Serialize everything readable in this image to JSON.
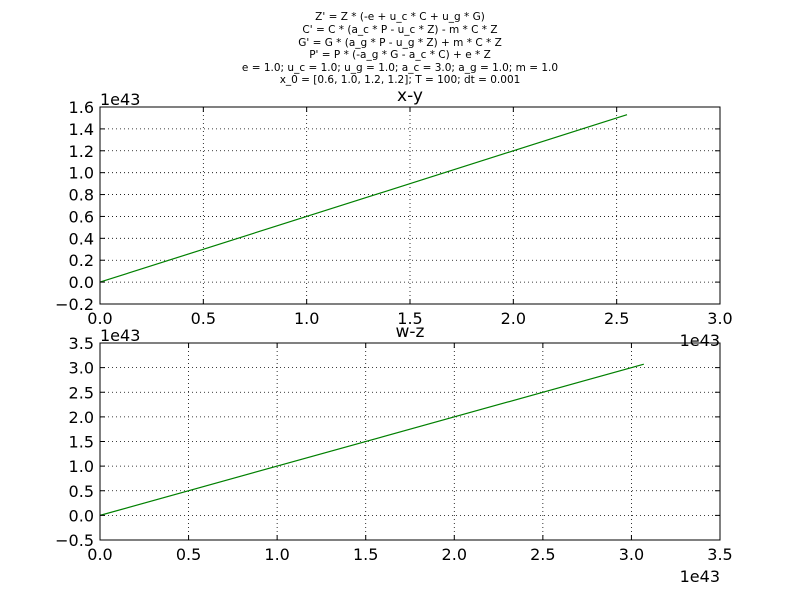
{
  "suptitle_lines": [
    "Z' = Z * (-e + u_c * C + u_g * G)",
    "C' = C * (a_c * P - u_c * Z) - m * C * Z",
    "G' = G * (a_g * P - u_g * Z) + m * C * Z",
    "P' = P * (-a_g * G - a_c * C) + e * Z",
    "e = 1.0; u_c = 1.0; u_g = 1.0; a_c = 3.0; a_g = 1.0; m = 1.0",
    "x_0 = [0.6, 1.0, 1.2, 1.2]; T = 100; dt = 0.001"
  ],
  "line_color": "#008000",
  "chart_data": [
    {
      "type": "line",
      "title": "x-y",
      "xlabel": "",
      "ylabel": "",
      "grid": true,
      "x_offset_label": "1e43",
      "y_offset_label": "1e43",
      "xlim": [
        0.0,
        3.0
      ],
      "ylim": [
        -0.2,
        1.6
      ],
      "xticks": [
        "0.0",
        "0.5",
        "1.0",
        "1.5",
        "2.0",
        "2.5",
        "3.0"
      ],
      "yticks": [
        "−0.2",
        "0.0",
        "0.2",
        "0.4",
        "0.6",
        "0.8",
        "1.0",
        "1.2",
        "1.4",
        "1.6"
      ],
      "series": [
        {
          "x": [
            0.0,
            2.55
          ],
          "y": [
            0.0,
            1.53
          ]
        }
      ]
    },
    {
      "type": "line",
      "title": "w-z",
      "xlabel": "",
      "ylabel": "",
      "grid": true,
      "x_offset_label": "1e43",
      "y_offset_label": "1e43",
      "xlim": [
        0.0,
        3.5
      ],
      "ylim": [
        -0.5,
        3.5
      ],
      "xticks": [
        "0.0",
        "0.5",
        "1.0",
        "1.5",
        "2.0",
        "2.5",
        "3.0",
        "3.5"
      ],
      "yticks": [
        "−0.5",
        "0.0",
        "0.5",
        "1.0",
        "1.5",
        "2.0",
        "2.5",
        "3.0",
        "3.5"
      ],
      "series": [
        {
          "x": [
            0.0,
            3.07
          ],
          "y": [
            0.0,
            3.07
          ]
        }
      ]
    }
  ]
}
